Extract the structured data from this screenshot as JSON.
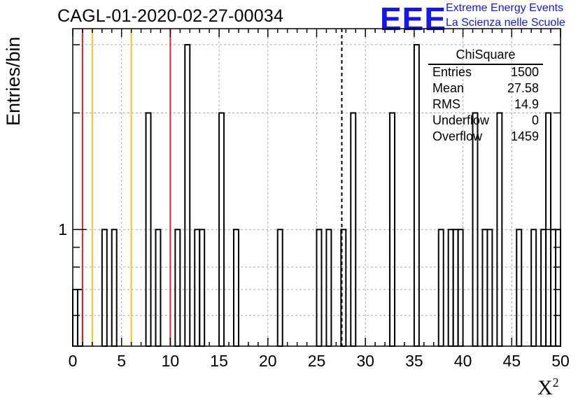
{
  "header": {
    "title": "CAGL-01-2020-02-27-00034",
    "logo_text": "EEE",
    "logo_line1": "Extreme Energy Events",
    "logo_line2": "La Scienza nelle Scuole"
  },
  "colors": {
    "logo": "#1515ee",
    "red_line": "#e32222",
    "yellow_line": "#f5c518",
    "histogram": "#000000",
    "grid": "#aaaaaa"
  },
  "chart_data": {
    "type": "bar",
    "title": "CAGL-01-2020-02-27-00034",
    "xlabel": "X",
    "xlabel_sup": "2",
    "ylabel": "Entries/bin",
    "xlim": [
      0,
      50
    ],
    "ylim": [
      0.5,
      3.3
    ],
    "yscale": "log",
    "bin_width": 0.5,
    "grid": true,
    "x_ticks": [
      0,
      5,
      10,
      15,
      20,
      25,
      30,
      35,
      40,
      45,
      50
    ],
    "y_ticks": [
      1
    ],
    "bins": [
      {
        "x": 0.0,
        "count": 0.7
      },
      {
        "x": 0.5,
        "count": 0.7
      },
      {
        "x": 3.0,
        "count": 1
      },
      {
        "x": 4.0,
        "count": 1
      },
      {
        "x": 7.5,
        "count": 2
      },
      {
        "x": 8.5,
        "count": 1
      },
      {
        "x": 10.5,
        "count": 1
      },
      {
        "x": 11.5,
        "count": 3
      },
      {
        "x": 12.5,
        "count": 1
      },
      {
        "x": 13.0,
        "count": 1
      },
      {
        "x": 15.0,
        "count": 2
      },
      {
        "x": 16.5,
        "count": 1
      },
      {
        "x": 21.0,
        "count": 1
      },
      {
        "x": 25.0,
        "count": 1
      },
      {
        "x": 26.0,
        "count": 1
      },
      {
        "x": 27.5,
        "count": 1
      },
      {
        "x": 28.5,
        "count": 2
      },
      {
        "x": 32.5,
        "count": 2
      },
      {
        "x": 35.0,
        "count": 3
      },
      {
        "x": 37.5,
        "count": 1
      },
      {
        "x": 38.5,
        "count": 1
      },
      {
        "x": 39.0,
        "count": 1
      },
      {
        "x": 39.5,
        "count": 1
      },
      {
        "x": 41.0,
        "count": 2
      },
      {
        "x": 42.0,
        "count": 1
      },
      {
        "x": 42.5,
        "count": 1
      },
      {
        "x": 43.5,
        "count": 2
      },
      {
        "x": 45.5,
        "count": 1
      },
      {
        "x": 47.0,
        "count": 1
      },
      {
        "x": 48.0,
        "count": 1
      },
      {
        "x": 48.5,
        "count": 2
      },
      {
        "x": 49.0,
        "count": 1
      },
      {
        "x": 49.5,
        "count": 1
      }
    ],
    "vertical_lines": [
      {
        "x": 1,
        "color": "red"
      },
      {
        "x": 2,
        "color": "yellow"
      },
      {
        "x": 6,
        "color": "yellow"
      },
      {
        "x": 10,
        "color": "red"
      },
      {
        "x": 27.58,
        "color": "black",
        "style": "dashed"
      }
    ],
    "stats": {
      "title": "ChiSquare",
      "rows": [
        {
          "label": "Entries",
          "value": "1500"
        },
        {
          "label": "Mean",
          "value": "27.58"
        },
        {
          "label": "RMS",
          "value": "14.9"
        },
        {
          "label": "Underflow",
          "value": "0"
        },
        {
          "label": "Overflow",
          "value": "1459"
        }
      ]
    }
  }
}
